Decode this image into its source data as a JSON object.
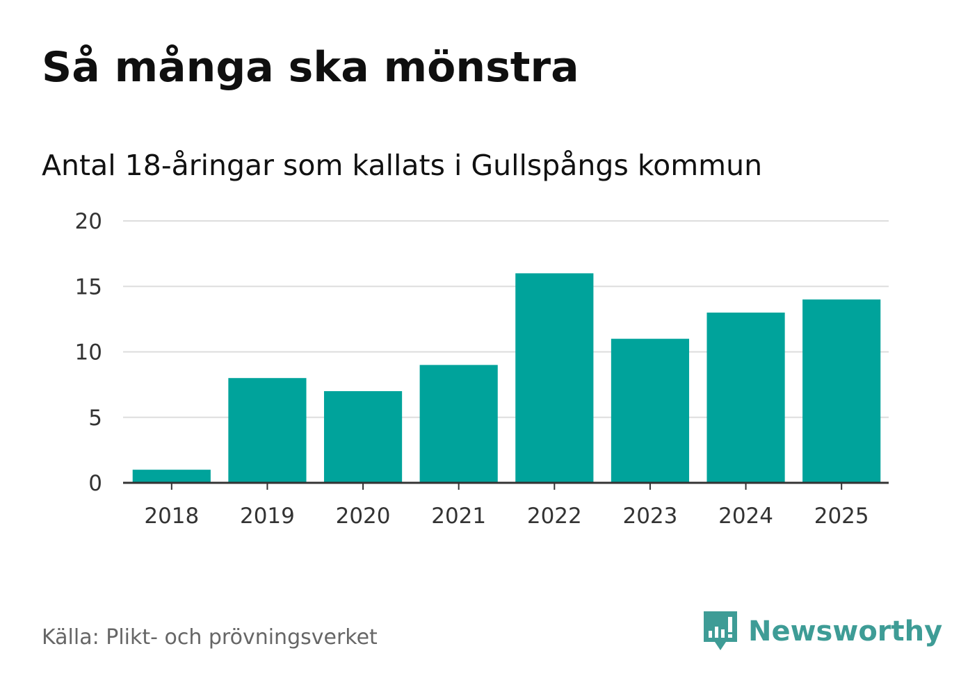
{
  "header": {
    "title": "Så många ska mönstra",
    "subtitle": "Antal 18-åringar som kallats i Gullspångs kommun"
  },
  "footer": {
    "source": "Källa: Plikt- och prövningsverket",
    "brand": "Newsworthy"
  },
  "colors": {
    "bar": "#00a39b",
    "grid": "#dddddd",
    "axis": "#333333",
    "brand": "#3e9c96",
    "text": "#333333"
  },
  "chart_data": {
    "type": "bar",
    "title": "Så många ska mönstra",
    "subtitle": "Antal 18-åringar som kallats i Gullspångs kommun",
    "xlabel": "",
    "ylabel": "",
    "categories": [
      "2018",
      "2019",
      "2020",
      "2021",
      "2022",
      "2023",
      "2024",
      "2025"
    ],
    "values": [
      1,
      8,
      7,
      9,
      16,
      11,
      13,
      14
    ],
    "ylim": [
      0,
      20
    ],
    "yticks": [
      0,
      5,
      10,
      15,
      20
    ],
    "grid": true,
    "legend": "none"
  }
}
